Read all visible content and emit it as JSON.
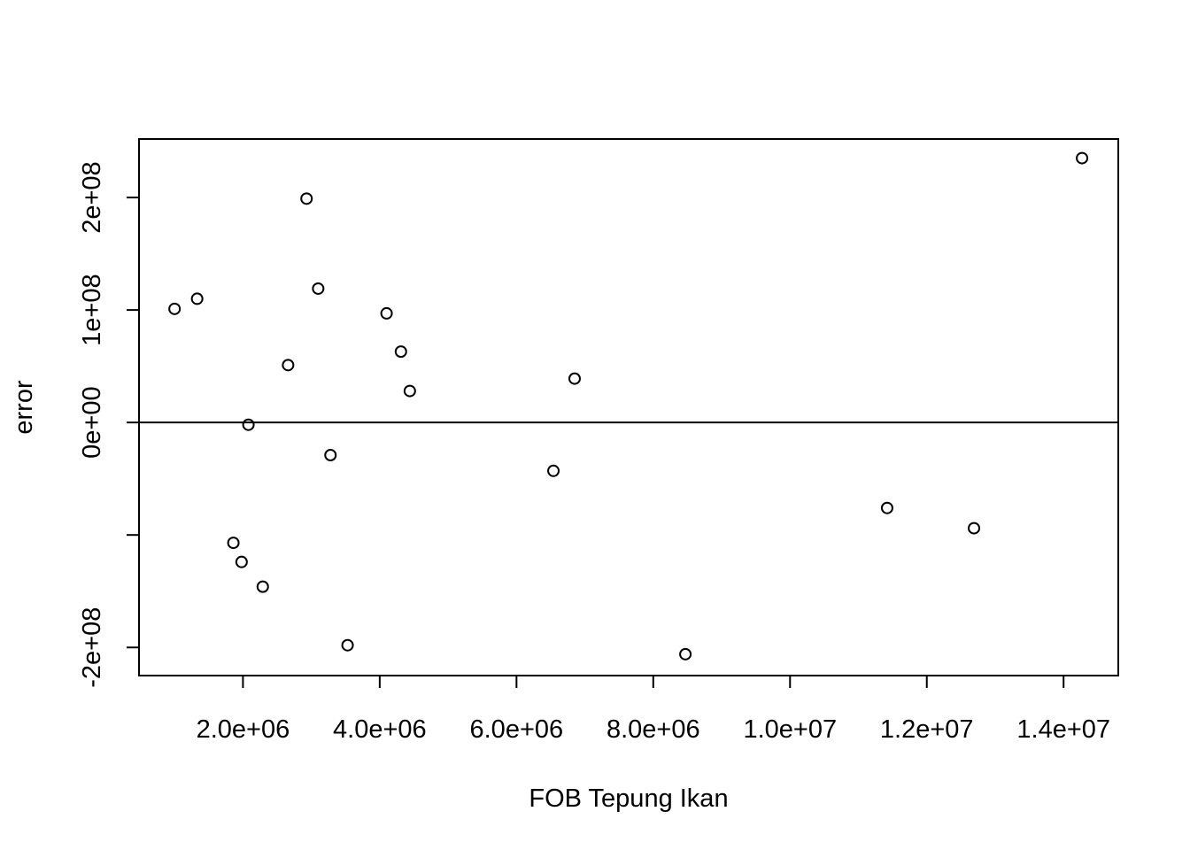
{
  "chart_data": {
    "type": "scatter",
    "title": "",
    "xlabel": "FOB Tepung Ikan",
    "ylabel": "error",
    "xlim": [
      480000,
      14800000
    ],
    "ylim": [
      -225000000,
      252000000
    ],
    "x_ticks": [
      {
        "value": 2000000,
        "label": "2.0e+06"
      },
      {
        "value": 4000000,
        "label": "4.0e+06"
      },
      {
        "value": 6000000,
        "label": "6.0e+06"
      },
      {
        "value": 8000000,
        "label": "8.0e+06"
      },
      {
        "value": 10000000,
        "label": "1.0e+07"
      },
      {
        "value": 12000000,
        "label": "1.2e+07"
      },
      {
        "value": 14000000,
        "label": "1.4e+07"
      }
    ],
    "y_ticks": [
      {
        "value": -200000000,
        "label": "-2e+08"
      },
      {
        "value": -100000000,
        "label": ""
      },
      {
        "value": 0,
        "label": "0e+00"
      },
      {
        "value": 100000000,
        "label": "1e+08"
      },
      {
        "value": 200000000,
        "label": "2e+08"
      }
    ],
    "reference_line": {
      "y": 0
    },
    "marker": "open-circle",
    "grid": false,
    "points": [
      {
        "x": 1000000,
        "y": 101000000
      },
      {
        "x": 1330000,
        "y": 110000000
      },
      {
        "x": 1860000,
        "y": -107000000
      },
      {
        "x": 1980000,
        "y": -124000000
      },
      {
        "x": 2080000,
        "y": -2000000
      },
      {
        "x": 2290000,
        "y": -146000000
      },
      {
        "x": 2660000,
        "y": 51000000
      },
      {
        "x": 2930000,
        "y": 199000000
      },
      {
        "x": 3100000,
        "y": 119000000
      },
      {
        "x": 3280000,
        "y": -29000000
      },
      {
        "x": 3530000,
        "y": -198000000
      },
      {
        "x": 4100000,
        "y": 97000000
      },
      {
        "x": 4310000,
        "y": 63000000
      },
      {
        "x": 4440000,
        "y": 28000000
      },
      {
        "x": 6540000,
        "y": -43000000
      },
      {
        "x": 6850000,
        "y": 39000000
      },
      {
        "x": 8470000,
        "y": -206000000
      },
      {
        "x": 11420000,
        "y": -76000000
      },
      {
        "x": 12690000,
        "y": -94000000
      },
      {
        "x": 14270000,
        "y": 235000000
      }
    ]
  }
}
